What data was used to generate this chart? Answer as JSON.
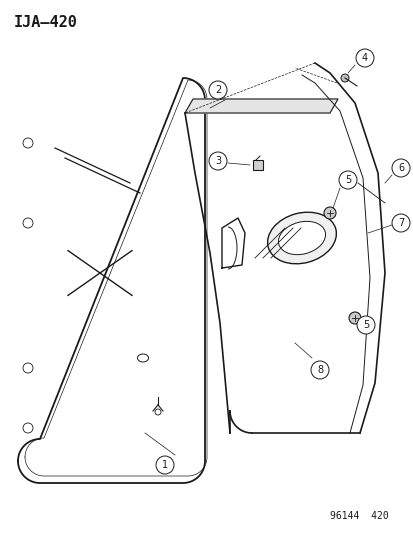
{
  "title": "IJA–420",
  "footer": "96144  420",
  "background_color": "#ffffff",
  "line_color": "#1a1a1a",
  "figsize": [
    4.14,
    5.33
  ],
  "dpi": 100,
  "title_fontsize": 11,
  "footer_fontsize": 7,
  "label_fontsize": 7
}
